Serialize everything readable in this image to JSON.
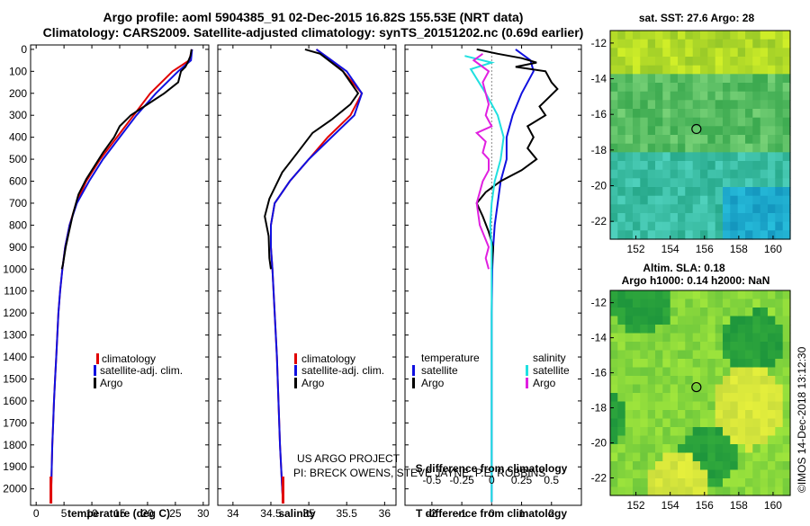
{
  "title_line1": "Argo profile: aoml 5904385_91 02-Dec-2015 16.82S 155.53E (NRT data)",
  "title_line2": "Climatology: CARS2009. Satellite-adjusted climatology: synTS_20151202.nc (0.69d earlier)",
  "colors": {
    "climatology": "#e00000",
    "satellite": "#1010e0",
    "argo": "#000000",
    "s_argo": "#e020e0",
    "s_sat": "#20e0e0"
  },
  "chart_data": [
    {
      "type": "line",
      "id": "temperature",
      "xlabel": "temperature (deg C)",
      "ylabel": "",
      "xlim": [
        -1,
        31
      ],
      "ylim": [
        2075,
        -20
      ],
      "xticks": [
        0,
        5,
        10,
        15,
        20,
        25,
        30
      ],
      "yticks": [
        0,
        100,
        200,
        300,
        400,
        500,
        600,
        700,
        800,
        900,
        1000,
        1100,
        1200,
        1300,
        1400,
        1500,
        1600,
        1700,
        1800,
        1900,
        2000
      ],
      "legend": [
        "climatology",
        "satellite-adj. clim.",
        "Argo"
      ],
      "series": [
        {
          "name": "climatology",
          "color": "climatology",
          "points": [
            [
              28,
              0
            ],
            [
              27.5,
              50
            ],
            [
              24.5,
              100
            ],
            [
              20.5,
              200
            ],
            [
              17.5,
              300
            ],
            [
              14.5,
              400
            ],
            [
              11.5,
              500
            ],
            [
              9,
              600
            ],
            [
              7.2,
              700
            ],
            [
              6,
              800
            ],
            [
              5.2,
              900
            ],
            [
              4.7,
              1000
            ],
            [
              4.3,
              1100
            ],
            [
              4,
              1200
            ],
            [
              3.8,
              1300
            ],
            [
              3.6,
              1400
            ],
            [
              3.4,
              1500
            ],
            [
              3.2,
              1600
            ],
            [
              3.05,
              1700
            ],
            [
              2.9,
              1800
            ],
            [
              2.8,
              1900
            ],
            [
              2.7,
              2000
            ],
            [
              2.65,
              2060
            ]
          ]
        },
        {
          "name": "satellite-adj. clim.",
          "color": "satellite",
          "points": [
            [
              28,
              0
            ],
            [
              27.8,
              50
            ],
            [
              25.5,
              100
            ],
            [
              21.5,
              200
            ],
            [
              18,
              300
            ],
            [
              15,
              400
            ],
            [
              12,
              500
            ],
            [
              9.5,
              600
            ],
            [
              7.3,
              700
            ],
            [
              6,
              800
            ],
            [
              5.2,
              900
            ],
            [
              4.7,
              1000
            ],
            [
              4.3,
              1100
            ],
            [
              4,
              1200
            ],
            [
              3.8,
              1300
            ],
            [
              3.6,
              1400
            ],
            [
              3.4,
              1500
            ],
            [
              3.2,
              1600
            ],
            [
              3.05,
              1700
            ],
            [
              2.9,
              1800
            ],
            [
              2.8,
              1900
            ],
            [
              2.7,
              2000
            ],
            [
              2.65,
              2060
            ]
          ]
        },
        {
          "name": "Argo",
          "color": "argo",
          "points": [
            [
              27.9,
              0
            ],
            [
              27.7,
              30
            ],
            [
              27.2,
              60
            ],
            [
              26.8,
              80
            ],
            [
              26,
              100
            ],
            [
              25.5,
              150
            ],
            [
              23,
              200
            ],
            [
              20,
              250
            ],
            [
              17,
              300
            ],
            [
              15,
              350
            ],
            [
              14,
              400
            ],
            [
              12,
              470
            ],
            [
              10.5,
              530
            ],
            [
              9,
              590
            ],
            [
              7.6,
              660
            ],
            [
              6.6,
              750
            ],
            [
              5.9,
              830
            ],
            [
              5.3,
              900
            ],
            [
              4.8,
              980
            ],
            [
              4.6,
              1000
            ]
          ]
        }
      ]
    },
    {
      "type": "line",
      "id": "salinity",
      "xlabel": "salinity",
      "ylabel": "",
      "xlim": [
        33.8,
        36.15
      ],
      "ylim": [
        2075,
        -20
      ],
      "xticks": [
        34,
        34.5,
        35,
        35.5,
        36
      ],
      "yticks": [],
      "legend": [
        "climatology",
        "satellite-adj. clim.",
        "Argo"
      ],
      "series": [
        {
          "name": "climatology",
          "color": "climatology",
          "points": [
            [
              35.1,
              0
            ],
            [
              35.3,
              50
            ],
            [
              35.45,
              100
            ],
            [
              35.7,
              200
            ],
            [
              35.55,
              300
            ],
            [
              35.25,
              400
            ],
            [
              35.0,
              500
            ],
            [
              34.75,
              600
            ],
            [
              34.55,
              700
            ],
            [
              34.5,
              800
            ],
            [
              34.5,
              900
            ],
            [
              34.52,
              1000
            ],
            [
              34.55,
              1200
            ],
            [
              34.58,
              1400
            ],
            [
              34.6,
              1600
            ],
            [
              34.62,
              1800
            ],
            [
              34.65,
              2000
            ],
            [
              34.66,
              2060
            ]
          ]
        },
        {
          "name": "satellite-adj. clim.",
          "color": "satellite",
          "points": [
            [
              35.1,
              0
            ],
            [
              35.3,
              50
            ],
            [
              35.5,
              100
            ],
            [
              35.7,
              200
            ],
            [
              35.6,
              300
            ],
            [
              35.3,
              400
            ],
            [
              35.0,
              500
            ],
            [
              34.75,
              600
            ],
            [
              34.55,
              700
            ],
            [
              34.5,
              800
            ],
            [
              34.5,
              900
            ],
            [
              34.52,
              1000
            ],
            [
              34.55,
              1200
            ],
            [
              34.58,
              1400
            ],
            [
              34.6,
              1600
            ],
            [
              34.62,
              1800
            ],
            [
              34.65,
              2000
            ],
            [
              34.66,
              2060
            ]
          ]
        },
        {
          "name": "Argo",
          "color": "argo",
          "points": [
            [
              34.95,
              0
            ],
            [
              35.15,
              20
            ],
            [
              35.3,
              60
            ],
            [
              35.45,
              100
            ],
            [
              35.55,
              150
            ],
            [
              35.65,
              200
            ],
            [
              35.55,
              250
            ],
            [
              35.3,
              320
            ],
            [
              35.05,
              380
            ],
            [
              34.85,
              470
            ],
            [
              34.65,
              560
            ],
            [
              34.48,
              680
            ],
            [
              34.42,
              760
            ],
            [
              34.47,
              850
            ],
            [
              34.48,
              950
            ],
            [
              34.5,
              1000
            ]
          ]
        }
      ]
    },
    {
      "type": "line",
      "id": "difference",
      "xlabel": "T difference from climatology",
      "xlabel2": "S difference from climatology",
      "xlim": [
        -2.9,
        3.0
      ],
      "ylim": [
        2075,
        -20
      ],
      "xticks": [
        -2,
        -1,
        0,
        1,
        2
      ],
      "xticks2_labels": [
        "-0.5",
        "-0.25",
        "0",
        "0.25",
        "0.5"
      ],
      "xticks2": [
        -2,
        -1,
        0,
        1,
        2
      ],
      "legend_left_title": "temperature",
      "legend_right_title": "salinity",
      "legend_left": [
        "satellite",
        "Argo"
      ],
      "legend_right": [
        "satellite",
        "Argo"
      ],
      "series": [
        {
          "name": "T satellite",
          "color": "satellite",
          "points": [
            [
              0.8,
              0
            ],
            [
              1.3,
              50
            ],
            [
              1.4,
              100
            ],
            [
              1.0,
              200
            ],
            [
              0.7,
              300
            ],
            [
              0.5,
              400
            ],
            [
              0.5,
              500
            ],
            [
              0.3,
              600
            ],
            [
              0.2,
              700
            ],
            [
              0.1,
              800
            ],
            [
              0.05,
              900
            ],
            [
              0.02,
              1000
            ],
            [
              0,
              1200
            ],
            [
              0,
              1500
            ],
            [
              0,
              1800
            ],
            [
              0,
              2060
            ]
          ]
        },
        {
          "name": "T Argo",
          "color": "argo",
          "points": [
            [
              -0.5,
              0
            ],
            [
              0.2,
              20
            ],
            [
              1.0,
              40
            ],
            [
              1.5,
              60
            ],
            [
              0.8,
              80
            ],
            [
              1.8,
              100
            ],
            [
              2.0,
              150
            ],
            [
              2.2,
              180
            ],
            [
              1.9,
              220
            ],
            [
              1.6,
              260
            ],
            [
              1.8,
              300
            ],
            [
              1.2,
              350
            ],
            [
              1.4,
              400
            ],
            [
              1.2,
              450
            ],
            [
              1.5,
              500
            ],
            [
              1.0,
              550
            ],
            [
              0.3,
              600
            ],
            [
              -0.2,
              650
            ],
            [
              -0.5,
              700
            ],
            [
              -0.3,
              760
            ],
            [
              -0.1,
              830
            ],
            [
              0.05,
              900
            ],
            [
              0,
              1000
            ]
          ]
        },
        {
          "name": "S satellite",
          "color": "s_sat",
          "points": [
            [
              -0.9,
              30
            ],
            [
              0.0,
              60
            ],
            [
              -0.7,
              90
            ],
            [
              -0.2,
              200
            ],
            [
              0.2,
              300
            ],
            [
              0.4,
              400
            ],
            [
              0.3,
              500
            ],
            [
              0.1,
              600
            ],
            [
              0.0,
              700
            ],
            [
              -0.05,
              800
            ],
            [
              0,
              900
            ],
            [
              0,
              1000
            ],
            [
              0,
              1200
            ],
            [
              0,
              1600
            ],
            [
              0,
              2060
            ]
          ]
        },
        {
          "name": "S Argo",
          "color": "s_argo",
          "points": [
            [
              -0.3,
              20
            ],
            [
              -0.6,
              50
            ],
            [
              -0.1,
              100
            ],
            [
              -0.3,
              150
            ],
            [
              -0.2,
              200
            ],
            [
              -0.1,
              250
            ],
            [
              -0.2,
              300
            ],
            [
              0.0,
              350
            ],
            [
              -0.5,
              380
            ],
            [
              -0.2,
              420
            ],
            [
              -0.3,
              470
            ],
            [
              -0.1,
              500
            ],
            [
              -0.1,
              550
            ],
            [
              -0.3,
              600
            ],
            [
              -0.5,
              700
            ],
            [
              -0.4,
              800
            ],
            [
              -0.1,
              900
            ],
            [
              -0.2,
              950
            ],
            [
              -0.1,
              1000
            ]
          ]
        }
      ]
    },
    {
      "type": "heatmap",
      "id": "sst_map",
      "title": "sat. SST: 27.6 Argo: 28",
      "xlim": [
        150.5,
        161
      ],
      "ylim": [
        -23,
        -11.3
      ],
      "xticks": [
        152,
        154,
        156,
        158,
        160
      ],
      "yticks": [
        -12,
        -14,
        -16,
        -18,
        -20,
        -22
      ],
      "marker": [
        155.53,
        -16.82
      ]
    },
    {
      "type": "heatmap",
      "id": "sla_map",
      "title": "Altim. SLA: 0.18",
      "subtitle": "Argo h1000: 0.14 h2000: NaN",
      "xlim": [
        150.5,
        161
      ],
      "ylim": [
        -23,
        -11.3
      ],
      "xticks": [
        152,
        154,
        156,
        158,
        160
      ],
      "yticks": [
        -12,
        -14,
        -16,
        -18,
        -20,
        -22
      ],
      "marker": [
        155.53,
        -16.82
      ]
    }
  ],
  "credits": {
    "line1": "US ARGO PROJECT",
    "line2": "PI: BRECK OWENS, STEVE JAYNE, P.E. ROBBINS"
  },
  "watermark": "©IMOS 14-Dec-2018 13:12:30"
}
